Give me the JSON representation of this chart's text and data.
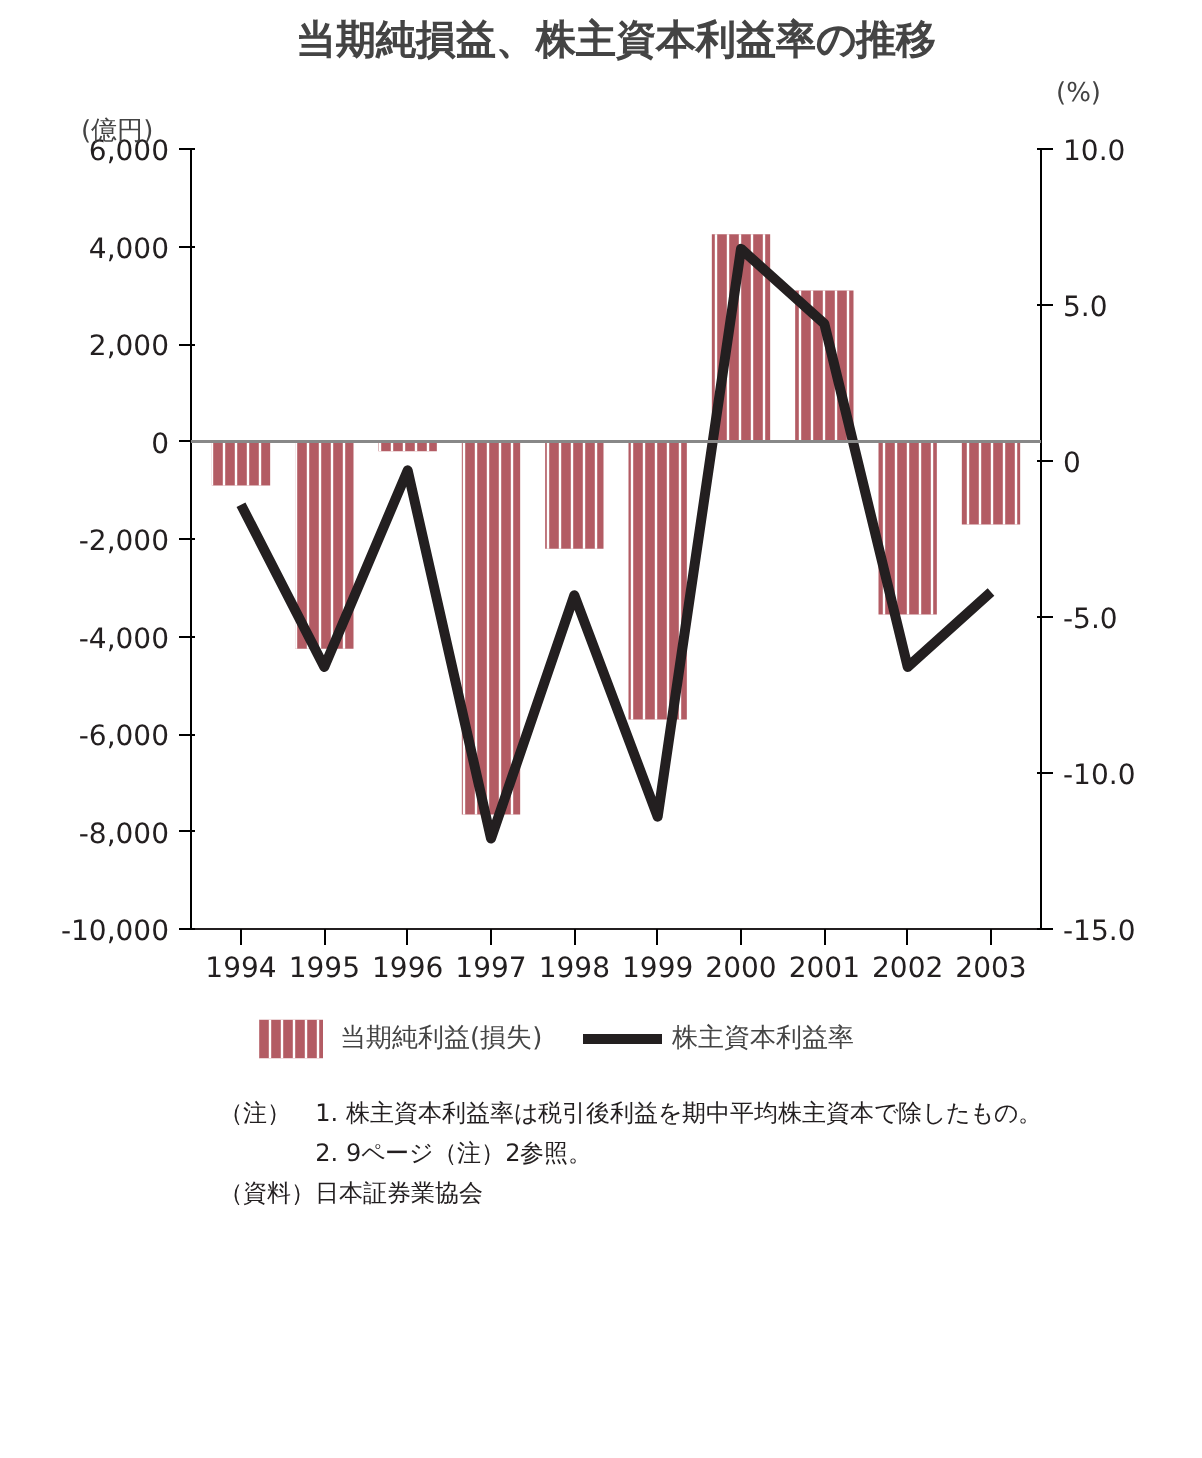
{
  "chart_data": {
    "type": "bar",
    "title": "当期純損益、株主資本利益率の推移",
    "ylabel": "(億円)",
    "y2label": "(%)",
    "categories": [
      "1994",
      "1995",
      "1996",
      "1997",
      "1998",
      "1999",
      "2000",
      "2001",
      "2002",
      "2003"
    ],
    "series": [
      {
        "name": "当期純利益(損失)",
        "color": "#b35c64",
        "values": [
          -900,
          -4250,
          -200,
          -7650,
          -2200,
          -5700,
          4250,
          3100,
          -3550,
          -1700
        ]
      },
      {
        "name": "株主資本利益率",
        "type": "line",
        "axis": "y2",
        "color": "#231f20",
        "values": [
          -1.4,
          -6.6,
          -0.3,
          -12.1,
          -4.3,
          -11.4,
          6.8,
          4.4,
          -6.6,
          -4.2
        ]
      }
    ],
    "ylim": [
      -10000,
      6000
    ],
    "yticks": [
      {
        "value": 6000,
        "label": "6,000"
      },
      {
        "value": 4000,
        "label": "4,000"
      },
      {
        "value": 2000,
        "label": "2,000"
      },
      0,
      {
        "value": -2000,
        "label": "-2,000"
      },
      {
        "value": -4000,
        "label": "-4,000"
      },
      {
        "value": -6000,
        "label": "-6,000"
      },
      {
        "value": -8000,
        "label": "-8,000"
      },
      {
        "value": -10000,
        "label": "-10,000"
      }
    ],
    "y2lim": [
      -15,
      10
    ],
    "y2ticks": [
      {
        "value": 10,
        "label": "10.0"
      },
      {
        "value": 5,
        "label": "5.0"
      },
      0,
      {
        "value": -5,
        "label": "-5.0"
      },
      {
        "value": -10,
        "label": "-10.0"
      },
      {
        "value": -15,
        "label": "-15.0"
      }
    ],
    "ref_lines": [
      {
        "axis": "y",
        "value": 0,
        "color": "#888888"
      }
    ],
    "grid": false,
    "legend": "bottom",
    "marker": "none",
    "line_style": "solid",
    "annotations": [
      "（注）　1. 株主資本利益率は税引後利益を期中平均株主資本で除したもの。",
      "　　　　2. 9ページ（注）2参照。",
      "（資料）日本証券業協会"
    ]
  }
}
